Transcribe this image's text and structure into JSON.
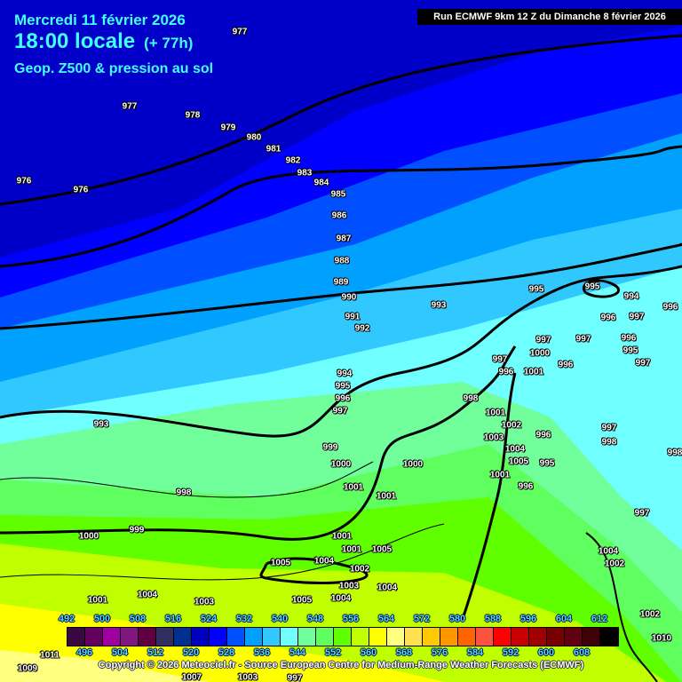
{
  "header": {
    "date": "Mercredi 11 février 2026",
    "time": "18:00 locale",
    "lead": "(+ 77h)",
    "product": "Geop. Z500 & pression au sol",
    "run": "Run ECMWF 9km 12 Z du Dimanche 8 février 2026"
  },
  "legend": {
    "top_labels": [
      "492",
      "500",
      "508",
      "516",
      "524",
      "532",
      "540",
      "548",
      "556",
      "564",
      "572",
      "580",
      "588",
      "596",
      "604",
      "612"
    ],
    "bottom_labels": [
      "496",
      "504",
      "512",
      "520",
      "528",
      "536",
      "544",
      "552",
      "560",
      "568",
      "576",
      "584",
      "592",
      "600",
      "608"
    ],
    "colors": [
      "#3a0840",
      "#650060",
      "#a000a0",
      "#801880",
      "#600040",
      "#303060",
      "#003090",
      "#0000c0",
      "#0000ff",
      "#0050ff",
      "#00a0ff",
      "#30c8ff",
      "#70ffff",
      "#70ff9a",
      "#60ff60",
      "#60ff00",
      "#c0ff00",
      "#ffff00",
      "#ffff80",
      "#ffe050",
      "#ffc800",
      "#ff9600",
      "#ff6400",
      "#ff5040",
      "#ff0000",
      "#c80000",
      "#a00000",
      "#780000",
      "#600010",
      "#400008",
      "#000000"
    ]
  },
  "band_colors": [
    "#0000c8",
    "#0000ff",
    "#0050ff",
    "#00a0ff",
    "#30c8ff",
    "#70ffff",
    "#70ff9a",
    "#60ff60",
    "#60ff00",
    "#c0ff00",
    "#ffff00",
    "#ffff80"
  ],
  "pressure_labels": [
    "977",
    "977",
    "978",
    "979",
    "980",
    "981",
    "982",
    "983",
    "984",
    "985",
    "976",
    "976",
    "986",
    "987",
    "988",
    "989",
    "990",
    "991",
    "992",
    "993",
    "995",
    "995",
    "994",
    "996",
    "996",
    "997",
    "997",
    "996",
    "997",
    "995",
    "996",
    "997",
    "1000",
    "997",
    "1001",
    "996",
    "994",
    "995",
    "996",
    "997",
    "998",
    "993",
    "1001",
    "1002",
    "1003",
    "1004",
    "1005",
    "995",
    "996",
    "996",
    "997",
    "998",
    "999",
    "1000",
    "1001",
    "1000",
    "1001",
    "998",
    "999",
    "1000",
    "1001",
    "1001",
    "1001",
    "1005",
    "1005",
    "1004",
    "1002",
    "1003",
    "1004",
    "1003",
    "1004",
    "1005",
    "1001",
    "1004",
    "1004",
    "1002",
    "1002",
    "1010",
    "1011",
    "1009",
    "1007",
    "1003",
    "997",
    "997",
    "998"
  ],
  "copyright": "Copyright © 2026 Meteociel.fr - Source European Centre for Medium-Range Weather Forecasts (ECMWF)"
}
